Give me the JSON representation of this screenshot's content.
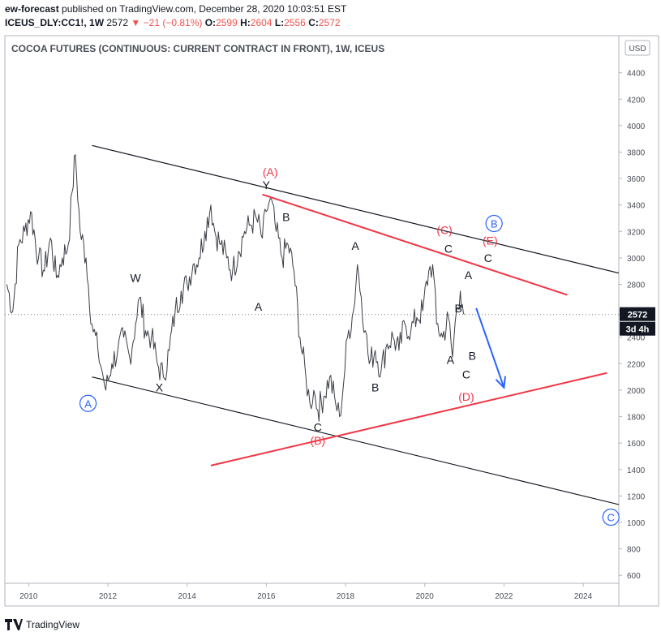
{
  "header": {
    "author": "ew-forecast",
    "published": "published on TradingView.com, December 28, 2020 10:03:51 EST",
    "symbol": "ICEUS_DLY:CC1!, 1W",
    "last": "2572",
    "change": "−21 (−0.81%)",
    "open_label": "O:",
    "open": "2599",
    "high_label": "H:",
    "high": "2604",
    "low_label": "L:",
    "low": "2556",
    "close_label": "C:",
    "close": "2572"
  },
  "chart_data": {
    "type": "line",
    "title": "COCOA FUTURES (CONTINUOUS: CURRENT CONTRACT IN FRONT), 1W, ICEUS",
    "currency": "USD",
    "xlim": [
      2009.4,
      2024.9
    ],
    "ylim": [
      540,
      4680
    ],
    "x_ticks": [
      "2010",
      "2012",
      "2014",
      "2016",
      "2018",
      "2020",
      "2022",
      "2024"
    ],
    "y_ticks": [
      "600",
      "800",
      "1000",
      "1200",
      "1400",
      "1600",
      "1800",
      "2000",
      "2200",
      "2400",
      "2600",
      "2800",
      "3000",
      "3200",
      "3400",
      "3600",
      "3800",
      "4000",
      "4200",
      "4400"
    ],
    "last_price": "2572",
    "countdown": "3d 4h",
    "price_series": {
      "x": [
        2009.45,
        2009.6,
        2009.75,
        2009.9,
        2010.05,
        2010.25,
        2010.4,
        2010.55,
        2010.7,
        2010.85,
        2011.0,
        2011.1,
        2011.18,
        2011.3,
        2011.45,
        2011.6,
        2011.75,
        2011.85,
        2011.95,
        2012.1,
        2012.25,
        2012.4,
        2012.55,
        2012.7,
        2012.8,
        2012.95,
        2013.1,
        2013.25,
        2013.4,
        2013.55,
        2013.7,
        2013.85,
        2014.0,
        2014.15,
        2014.3,
        2014.45,
        2014.6,
        2014.7,
        2014.85,
        2015.0,
        2015.15,
        2015.3,
        2015.45,
        2015.6,
        2015.75,
        2015.9,
        2016.0,
        2016.1,
        2016.25,
        2016.4,
        2016.55,
        2016.7,
        2016.85,
        2017.0,
        2017.1,
        2017.2,
        2017.3,
        2017.45,
        2017.6,
        2017.75,
        2017.85,
        2017.95,
        2018.05,
        2018.2,
        2018.3,
        2018.4,
        2018.5,
        2018.6,
        2018.75,
        2018.9,
        2019.05,
        2019.2,
        2019.35,
        2019.5,
        2019.65,
        2019.8,
        2019.95,
        2020.1,
        2020.2,
        2020.3,
        2020.45,
        2020.6,
        2020.7,
        2020.8,
        2020.9,
        2020.95,
        2021.0
      ],
      "y": [
        2800,
        2600,
        3100,
        3200,
        3350,
        3000,
        2900,
        3150,
        2850,
        3000,
        3100,
        3500,
        3780,
        3200,
        3000,
        2500,
        2300,
        2150,
        2000,
        2200,
        2300,
        2400,
        2250,
        2500,
        2700,
        2450,
        2400,
        2200,
        2100,
        2300,
        2600,
        2750,
        2800,
        2950,
        3000,
        3200,
        3400,
        3200,
        3100,
        3000,
        2900,
        3050,
        3200,
        3250,
        3300,
        3150,
        3350,
        3450,
        3200,
        3000,
        3100,
        2900,
        2400,
        2100,
        1900,
        2000,
        1850,
        1950,
        2100,
        1900,
        1800,
        2050,
        2400,
        2600,
        2950,
        2700,
        2450,
        2200,
        2300,
        2150,
        2350,
        2400,
        2300,
        2500,
        2450,
        2550,
        2600,
        2900,
        2950,
        2500,
        2400,
        2550,
        2250,
        2600,
        2750,
        2650,
        2572
      ]
    },
    "channel_lines": [
      {
        "name": "channel-upper",
        "color": "#131722",
        "x": [
          2011.6,
          2025.8
        ],
        "y": [
          3850,
          2820
        ]
      },
      {
        "name": "channel-lower",
        "color": "#131722",
        "x": [
          2011.6,
          2025.8
        ],
        "y": [
          2100,
          1070
        ]
      },
      {
        "name": "triangle-upper",
        "color": "#f23645",
        "x": [
          2015.9,
          2023.6
        ],
        "y": [
          3480,
          2720
        ]
      },
      {
        "name": "triangle-lower",
        "color": "#f23645",
        "x": [
          2014.6,
          2024.6
        ],
        "y": [
          1430,
          2130
        ]
      }
    ],
    "forecast_arrow": {
      "color": "#2962ff",
      "x": [
        2021.3,
        2022.0
      ],
      "y": [
        2620,
        2020
      ]
    },
    "annotations": [
      {
        "text": "(A)",
        "x": 2016.1,
        "y": 3620,
        "color": "#f23645"
      },
      {
        "text": "Y",
        "x": 2016.0,
        "y": 3520,
        "color": "#131722"
      },
      {
        "text": "B",
        "x": 2016.5,
        "y": 3280,
        "color": "#131722"
      },
      {
        "text": "W",
        "x": 2012.7,
        "y": 2820,
        "color": "#131722"
      },
      {
        "text": "A",
        "x": 2015.8,
        "y": 2600,
        "color": "#131722"
      },
      {
        "text": "X",
        "x": 2013.3,
        "y": 1990,
        "color": "#131722"
      },
      {
        "text": "A",
        "x": 2018.25,
        "y": 3060,
        "color": "#131722"
      },
      {
        "text": "B",
        "x": 2018.75,
        "y": 1990,
        "color": "#131722"
      },
      {
        "text": "C",
        "x": 2017.3,
        "y": 1690,
        "color": "#131722"
      },
      {
        "text": "(B)",
        "x": 2017.3,
        "y": 1590,
        "color": "#f23645"
      },
      {
        "text": "(C)",
        "x": 2020.5,
        "y": 3180,
        "color": "#f23645"
      },
      {
        "text": "C",
        "x": 2020.6,
        "y": 3040,
        "color": "#131722"
      },
      {
        "text": "(E)",
        "x": 2021.65,
        "y": 3100,
        "color": "#f23645"
      },
      {
        "text": "C",
        "x": 2021.6,
        "y": 2970,
        "color": "#131722"
      },
      {
        "text": "A",
        "x": 2021.1,
        "y": 2840,
        "color": "#131722"
      },
      {
        "text": "B",
        "x": 2020.85,
        "y": 2590,
        "color": "#131722"
      },
      {
        "text": "A",
        "x": 2020.65,
        "y": 2200,
        "color": "#131722"
      },
      {
        "text": "B",
        "x": 2021.2,
        "y": 2230,
        "color": "#131722"
      },
      {
        "text": "C",
        "x": 2021.05,
        "y": 2090,
        "color": "#131722"
      },
      {
        "text": "(D)",
        "x": 2021.05,
        "y": 1920,
        "color": "#f23645"
      }
    ],
    "circled_labels": [
      {
        "text": "A",
        "x": 2011.5,
        "y": 1900,
        "color": "#2962ff"
      },
      {
        "text": "B",
        "x": 2021.75,
        "y": 3260,
        "color": "#2962ff"
      },
      {
        "text": "C",
        "x": 2024.7,
        "y": 1040,
        "color": "#2962ff"
      }
    ]
  },
  "footer": {
    "brand": "TradingView"
  }
}
